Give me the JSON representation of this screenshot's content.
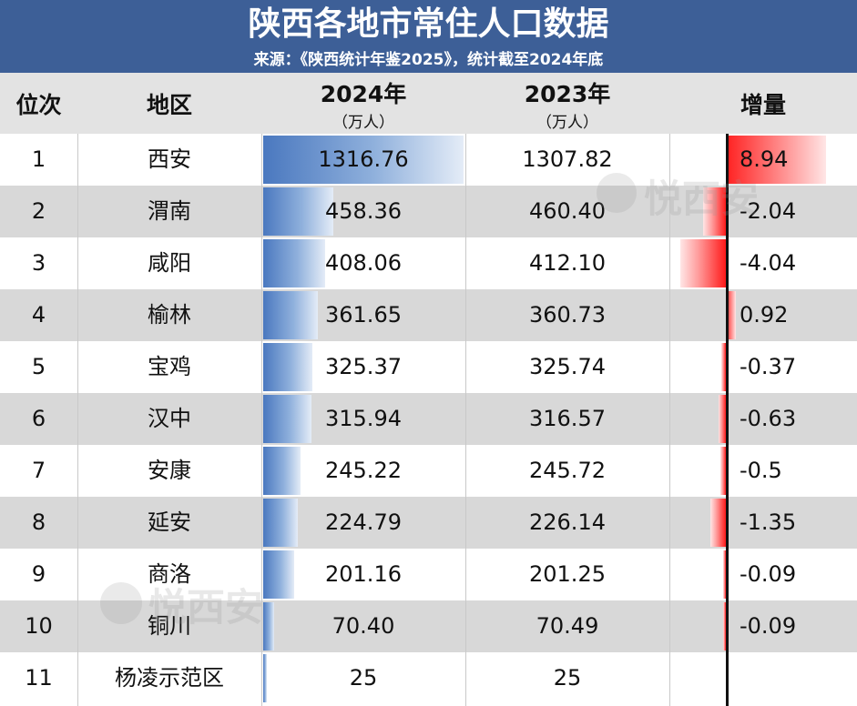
{
  "title": "陕西各地市常住人口数据",
  "subtitle": "来源：《陕西统计年鉴2025》，统计截至2024年底",
  "header": {
    "rank": "位次",
    "region": "地区",
    "y2024": "2024年",
    "y2024_unit": "（万人）",
    "y2023": "2023年",
    "y2023_unit": "（万人）",
    "increase": "增量"
  },
  "watermark": "悦西安",
  "chart_data": {
    "type": "table",
    "columns": [
      "位次",
      "地区",
      "2024年（万人）",
      "2023年（万人）",
      "增量"
    ],
    "rows": [
      {
        "rank": "1",
        "region": "西安",
        "y2024": "1316.76",
        "y2023": "1307.82",
        "delta": "8.94",
        "v2024": 1316.76,
        "vdelta": 8.94
      },
      {
        "rank": "2",
        "region": "渭南",
        "y2024": "458.36",
        "y2023": "460.40",
        "delta": "-2.04",
        "v2024": 458.36,
        "vdelta": -2.04
      },
      {
        "rank": "3",
        "region": "咸阳",
        "y2024": "408.06",
        "y2023": "412.10",
        "delta": "-4.04",
        "v2024": 408.06,
        "vdelta": -4.04
      },
      {
        "rank": "4",
        "region": "榆林",
        "y2024": "361.65",
        "y2023": "360.73",
        "delta": "0.92",
        "v2024": 361.65,
        "vdelta": 0.92
      },
      {
        "rank": "5",
        "region": "宝鸡",
        "y2024": "325.37",
        "y2023": "325.74",
        "delta": "-0.37",
        "v2024": 325.37,
        "vdelta": -0.37
      },
      {
        "rank": "6",
        "region": "汉中",
        "y2024": "315.94",
        "y2023": "316.57",
        "delta": "-0.63",
        "v2024": 315.94,
        "vdelta": -0.63
      },
      {
        "rank": "7",
        "region": "安康",
        "y2024": "245.22",
        "y2023": "245.72",
        "delta": "-0.5",
        "v2024": 245.22,
        "vdelta": -0.5
      },
      {
        "rank": "8",
        "region": "延安",
        "y2024": "224.79",
        "y2023": "226.14",
        "delta": "-1.35",
        "v2024": 224.79,
        "vdelta": -1.35
      },
      {
        "rank": "9",
        "region": "商洛",
        "y2024": "201.16",
        "y2023": "201.25",
        "delta": "-0.09",
        "v2024": 201.16,
        "vdelta": -0.09
      },
      {
        "rank": "10",
        "region": "铜川",
        "y2024": "70.40",
        "y2023": "70.49",
        "delta": "-0.09",
        "v2024": 70.4,
        "vdelta": -0.09
      },
      {
        "rank": "11",
        "region": "杨凌示范区",
        "y2024": "25",
        "y2023": "25",
        "delta": "",
        "v2024": 25,
        "vdelta": 0
      }
    ]
  },
  "colors": {
    "title_bg": "#3d5f97",
    "bar_blue": "#4a78bf",
    "bar_red": "#ff2020"
  }
}
